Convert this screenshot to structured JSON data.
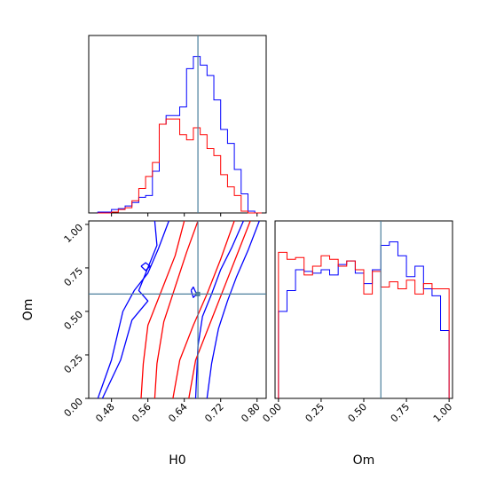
{
  "chart_data": [
    {
      "type": "histogram",
      "panel": "H0 marginal",
      "xlim": [
        0.43,
        0.82
      ],
      "ticks": [
        0.48,
        0.56,
        0.64,
        0.72,
        0.8
      ],
      "show_tick_labels": false,
      "truth": 0.67,
      "bin_edges": [
        0.45,
        0.465,
        0.48,
        0.495,
        0.51,
        0.525,
        0.54,
        0.555,
        0.57,
        0.585,
        0.6,
        0.615,
        0.63,
        0.645,
        0.66,
        0.675,
        0.69,
        0.705,
        0.72,
        0.735,
        0.75,
        0.765,
        0.78,
        0.795,
        0.81
      ],
      "series": [
        {
          "color": "#0000ff",
          "values": [
            0.005,
            0.005,
            0.02,
            0.025,
            0.04,
            0.06,
            0.09,
            0.1,
            0.24,
            0.51,
            0.56,
            0.56,
            0.61,
            0.83,
            0.9,
            0.85,
            0.79,
            0.65,
            0.48,
            0.4,
            0.25,
            0.11,
            0.01,
            0.0
          ]
        },
        {
          "color": "#ff0000",
          "values": [
            0.0,
            0.0,
            0.005,
            0.02,
            0.03,
            0.07,
            0.14,
            0.21,
            0.29,
            0.51,
            0.54,
            0.54,
            0.45,
            0.42,
            0.49,
            0.45,
            0.37,
            0.33,
            0.22,
            0.15,
            0.1,
            0.01,
            0.0,
            0.0
          ]
        }
      ]
    },
    {
      "type": "contour",
      "panel": "H0 vs Om",
      "xlabel": "H0",
      "ylabel": "Om",
      "xlim": [
        0.43,
        0.82
      ],
      "ylim": [
        0.0,
        1.02
      ],
      "xticks": [
        "0.48",
        "0.56",
        "0.64",
        "0.72",
        "0.80"
      ],
      "yticks": [
        "0.00",
        "0.25",
        "0.50",
        "0.75",
        "1.00"
      ],
      "truth": {
        "H0": 0.67,
        "Om": 0.6
      },
      "series": [
        {
          "color": "#0000ff",
          "contours": [
            [
              [
                0.606,
                1.02
              ],
              [
                0.583,
                0.86
              ],
              [
                0.56,
                0.72
              ],
              [
                0.53,
                0.62
              ],
              [
                0.505,
                0.5
              ],
              [
                0.48,
                0.22
              ],
              [
                0.45,
                0.0
              ]
            ],
            [
              [
                0.77,
                1.02
              ],
              [
                0.745,
                0.87
              ],
              [
                0.72,
                0.74
              ],
              [
                0.7,
                0.6
              ],
              [
                0.68,
                0.47
              ],
              [
                0.67,
                0.3
              ],
              [
                0.665,
                0.0
              ]
            ],
            [
              [
                0.575,
                1.02
              ],
              [
                0.58,
                0.88
              ],
              [
                0.54,
                0.62
              ],
              [
                0.56,
                0.56
              ],
              [
                0.525,
                0.45
              ],
              [
                0.5,
                0.22
              ],
              [
                0.46,
                0.0
              ]
            ],
            [
              [
                0.805,
                1.02
              ],
              [
                0.78,
                0.85
              ],
              [
                0.755,
                0.7
              ],
              [
                0.735,
                0.56
              ],
              [
                0.715,
                0.4
              ],
              [
                0.7,
                0.2
              ],
              [
                0.69,
                0.0
              ]
            ],
            [
              [
                0.545,
                0.76
              ],
              [
                0.555,
                0.78
              ],
              [
                0.565,
                0.76
              ],
              [
                0.555,
                0.735
              ],
              [
                0.545,
                0.76
              ]
            ],
            [
              [
                0.655,
                0.62
              ],
              [
                0.66,
                0.64
              ],
              [
                0.667,
                0.6
              ],
              [
                0.66,
                0.58
              ],
              [
                0.655,
                0.62
              ]
            ]
          ]
        },
        {
          "color": "#ff0000",
          "contours": [
            [
              [
                0.64,
                1.02
              ],
              [
                0.62,
                0.82
              ],
              [
                0.59,
                0.62
              ],
              [
                0.56,
                0.42
              ],
              [
                0.55,
                0.2
              ],
              [
                0.545,
                0.0
              ]
            ],
            [
              [
                0.75,
                1.02
              ],
              [
                0.72,
                0.8
              ],
              [
                0.69,
                0.6
              ],
              [
                0.66,
                0.42
              ],
              [
                0.63,
                0.22
              ],
              [
                0.615,
                0.0
              ]
            ],
            [
              [
                0.67,
                1.02
              ],
              [
                0.645,
                0.84
              ],
              [
                0.62,
                0.64
              ],
              [
                0.595,
                0.44
              ],
              [
                0.58,
                0.2
              ],
              [
                0.575,
                0.0
              ]
            ],
            [
              [
                0.785,
                1.02
              ],
              [
                0.755,
                0.82
              ],
              [
                0.725,
                0.62
              ],
              [
                0.695,
                0.42
              ],
              [
                0.665,
                0.22
              ],
              [
                0.65,
                0.0
              ]
            ]
          ]
        }
      ]
    },
    {
      "type": "histogram",
      "panel": "Om marginal",
      "xlabel": "Om",
      "xlim": [
        -0.02,
        1.02
      ],
      "xticks": [
        "0.00",
        "0.25",
        "0.50",
        "0.75",
        "1.00"
      ],
      "truth": 0.6,
      "bin_edges": [
        0.0,
        0.05,
        0.1,
        0.15,
        0.2,
        0.25,
        0.3,
        0.35,
        0.4,
        0.45,
        0.5,
        0.55,
        0.6,
        0.65,
        0.7,
        0.75,
        0.8,
        0.85,
        0.9,
        0.95,
        1.0
      ],
      "series": [
        {
          "color": "#0000ff",
          "values": [
            0.5,
            0.62,
            0.74,
            0.73,
            0.72,
            0.74,
            0.71,
            0.77,
            0.79,
            0.72,
            0.66,
            0.74,
            0.88,
            0.9,
            0.82,
            0.7,
            0.76,
            0.63,
            0.59,
            0.39
          ]
        },
        {
          "color": "#ff0000",
          "values": [
            0.84,
            0.8,
            0.81,
            0.71,
            0.76,
            0.82,
            0.8,
            0.76,
            0.79,
            0.74,
            0.6,
            0.73,
            0.64,
            0.67,
            0.63,
            0.68,
            0.6,
            0.66,
            0.63,
            0.63
          ]
        }
      ]
    }
  ]
}
